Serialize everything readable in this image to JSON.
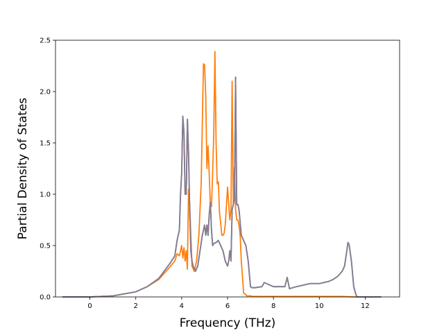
{
  "chart_data": {
    "type": "line",
    "title": "",
    "xlabel": "Frequency (THz)",
    "ylabel": "Partial Density of States",
    "xlim": [
      -1.5,
      13.5
    ],
    "ylim": [
      0,
      2.5
    ],
    "xticks": [
      0,
      2,
      4,
      6,
      8,
      10,
      12
    ],
    "yticks": [
      0.0,
      0.5,
      1.0,
      1.5,
      2.0,
      2.5
    ],
    "xtick_labels": [
      "0",
      "2",
      "4",
      "6",
      "8",
      "10",
      "12"
    ],
    "ytick_labels": [
      "0.0",
      "0.5",
      "1.0",
      "1.5",
      "2.0",
      "2.5"
    ],
    "grid": false,
    "legend": "none",
    "series": [
      {
        "color": "#ff7f0e",
        "x": [
          -1.2,
          0,
          1,
          2,
          2.5,
          3,
          3.4,
          3.7,
          3.8,
          3.9,
          4.0,
          4.05,
          4.1,
          4.15,
          4.2,
          4.25,
          4.3,
          4.35,
          4.45,
          4.55,
          4.65,
          4.75,
          4.85,
          4.95,
          5.0,
          5.05,
          5.1,
          5.15,
          5.2,
          5.25,
          5.3,
          5.35,
          5.4,
          5.45,
          5.5,
          5.55,
          5.6,
          5.65,
          5.7,
          5.75,
          5.8,
          5.85,
          5.9,
          6.0,
          6.1,
          6.15,
          6.2,
          6.25,
          6.3,
          6.35,
          6.4,
          6.45,
          6.5,
          6.55,
          6.6,
          6.65,
          6.7,
          6.8,
          6.85,
          6.9,
          7.0,
          7.1,
          7.3,
          8,
          9,
          10,
          11,
          11.5,
          11.7,
          12.7
        ],
        "y": [
          0.0,
          0.0,
          0.01,
          0.05,
          0.1,
          0.17,
          0.27,
          0.35,
          0.42,
          0.4,
          0.5,
          0.38,
          0.48,
          0.35,
          0.45,
          0.27,
          1.05,
          0.9,
          0.3,
          0.25,
          0.35,
          0.6,
          1.1,
          2.27,
          2.26,
          1.95,
          1.25,
          1.47,
          1.2,
          0.9,
          0.88,
          1.2,
          1.6,
          2.39,
          1.5,
          1.1,
          1.12,
          0.82,
          0.72,
          0.6,
          0.6,
          0.62,
          0.7,
          1.07,
          0.75,
          0.85,
          2.1,
          0.9,
          1.26,
          0.85,
          0.75,
          0.75,
          0.7,
          0.6,
          0.35,
          0.2,
          0.04,
          0.02,
          0.01,
          0.01,
          0.01,
          0.005,
          0.005,
          0.005,
          0.005,
          0.005,
          0.005,
          0.0,
          0.0,
          0.0
        ]
      },
      {
        "color": "#1f77b4",
        "x": [
          -1.2,
          0,
          1,
          2,
          2.5,
          3,
          3.3,
          3.5,
          3.7,
          3.8,
          3.9,
          3.95,
          4.0,
          4.05,
          4.1,
          4.15,
          4.2,
          4.25,
          4.3,
          4.35,
          4.4,
          4.45,
          4.5,
          4.6,
          4.7,
          4.8,
          4.9,
          5.0,
          5.05,
          5.1,
          5.15,
          5.2,
          5.25,
          5.3,
          5.35,
          5.4,
          5.5,
          5.6,
          5.7,
          5.8,
          5.9,
          6.0,
          6.05,
          6.1,
          6.15,
          6.2,
          6.25,
          6.3,
          6.35,
          6.4,
          6.45,
          6.5,
          6.6,
          6.7,
          6.8,
          6.9,
          7.0,
          7.05,
          7.2,
          7.5,
          7.6,
          8.0,
          8.5,
          8.6,
          8.7,
          9.0,
          9.2,
          9.4,
          9.6,
          9.8,
          10.0,
          10.2,
          10.4,
          10.6,
          10.8,
          11.0,
          11.1,
          11.2,
          11.25,
          11.3,
          11.4,
          11.5,
          11.6,
          11.65,
          12.7
        ],
        "y": [
          0.0,
          0.0,
          0.01,
          0.05,
          0.1,
          0.18,
          0.27,
          0.33,
          0.4,
          0.55,
          0.65,
          1.0,
          1.2,
          1.76,
          1.6,
          1.0,
          1.0,
          1.73,
          1.4,
          0.85,
          0.45,
          0.35,
          0.3,
          0.25,
          0.3,
          0.45,
          0.6,
          0.7,
          0.6,
          0.7,
          0.6,
          0.8,
          0.92,
          0.65,
          0.5,
          0.52,
          0.53,
          0.55,
          0.5,
          0.45,
          0.35,
          0.3,
          0.35,
          0.45,
          0.35,
          0.85,
          0.9,
          0.95,
          2.14,
          0.9,
          0.9,
          0.85,
          0.6,
          0.55,
          0.5,
          0.35,
          0.1,
          0.09,
          0.09,
          0.1,
          0.14,
          0.1,
          0.1,
          0.19,
          0.08,
          0.1,
          0.11,
          0.12,
          0.13,
          0.13,
          0.13,
          0.14,
          0.15,
          0.17,
          0.2,
          0.25,
          0.3,
          0.45,
          0.53,
          0.51,
          0.35,
          0.1,
          0.02,
          0.0,
          0.0
        ]
      },
      {
        "color": "#8c7b8c",
        "x": [
          -1.2,
          0,
          1,
          2,
          2.5,
          3,
          3.3,
          3.5,
          3.7,
          3.8,
          3.9,
          3.95,
          4.0,
          4.05,
          4.1,
          4.15,
          4.2,
          4.25,
          4.3,
          4.35,
          4.4,
          4.45,
          4.5,
          4.6,
          4.7,
          4.8,
          4.9,
          5.0,
          5.05,
          5.1,
          5.15,
          5.2,
          5.25,
          5.3,
          5.35,
          5.4,
          5.5,
          5.6,
          5.7,
          5.8,
          5.9,
          6.0,
          6.05,
          6.1,
          6.15,
          6.2,
          6.25,
          6.3,
          6.35,
          6.4,
          6.45,
          6.5,
          6.6,
          6.7,
          6.8,
          6.9,
          7.0,
          7.05,
          7.2,
          7.5,
          7.6,
          8.0,
          8.5,
          8.6,
          8.7,
          9.0,
          9.2,
          9.4,
          9.6,
          9.8,
          10.0,
          10.2,
          10.4,
          10.6,
          10.8,
          11.0,
          11.1,
          11.2,
          11.25,
          11.3,
          11.4,
          11.5,
          11.6,
          11.65,
          12.7
        ],
        "y": [
          0.0,
          0.0,
          0.01,
          0.05,
          0.1,
          0.18,
          0.27,
          0.33,
          0.4,
          0.55,
          0.65,
          1.0,
          1.2,
          1.76,
          1.6,
          1.0,
          1.0,
          1.73,
          1.4,
          0.85,
          0.45,
          0.35,
          0.3,
          0.25,
          0.3,
          0.45,
          0.6,
          0.7,
          0.6,
          0.7,
          0.6,
          0.8,
          0.92,
          0.65,
          0.5,
          0.52,
          0.53,
          0.55,
          0.5,
          0.45,
          0.35,
          0.3,
          0.35,
          0.45,
          0.35,
          0.85,
          0.9,
          0.95,
          2.12,
          0.9,
          0.9,
          0.85,
          0.6,
          0.55,
          0.5,
          0.35,
          0.1,
          0.09,
          0.09,
          0.1,
          0.14,
          0.1,
          0.1,
          0.19,
          0.08,
          0.1,
          0.11,
          0.12,
          0.13,
          0.13,
          0.13,
          0.14,
          0.15,
          0.17,
          0.2,
          0.25,
          0.3,
          0.45,
          0.53,
          0.51,
          0.35,
          0.1,
          0.02,
          0.0,
          0.0
        ]
      }
    ]
  }
}
